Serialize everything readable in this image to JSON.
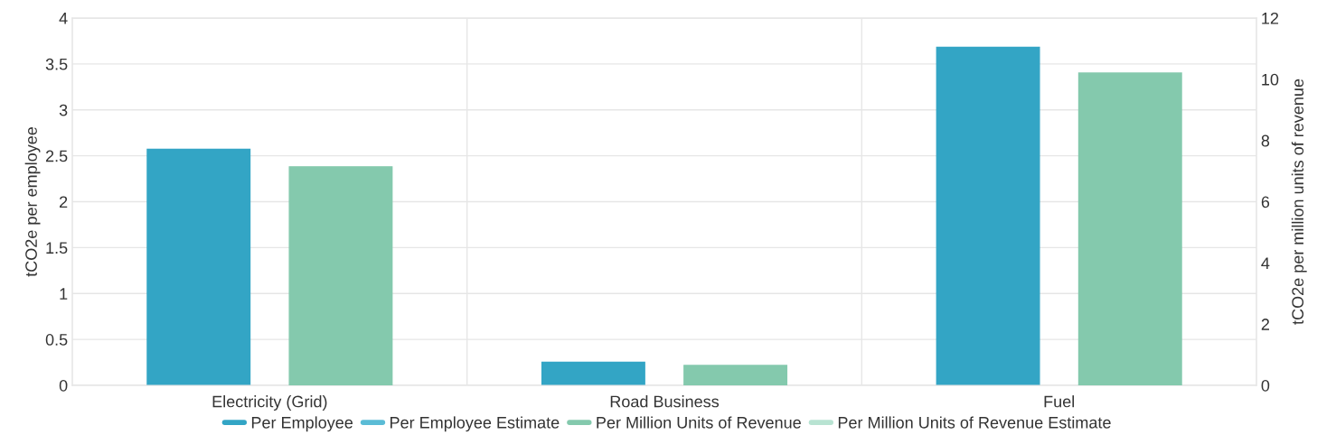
{
  "chart_data": {
    "type": "bar",
    "categories": [
      "Electricity (Grid)",
      "Road Business",
      "Fuel"
    ],
    "series": [
      {
        "name": "Per Employee",
        "color": "#33a5c5",
        "values": [
          2.57,
          0.25,
          3.68
        ]
      },
      {
        "name": "Per Employee Estimate",
        "color": "#5bbcd6",
        "values": [
          null,
          null,
          null
        ]
      },
      {
        "name": "Per Million Units of Revenue",
        "color": "#84c9ad",
        "values": [
          7.14,
          0.65,
          10.2
        ],
        "axis": "y2"
      },
      {
        "name": "Per Million Units of Revenue Estimate",
        "color": "#b8e3d2",
        "values": [
          null,
          null,
          null
        ],
        "axis": "y2"
      }
    ],
    "ylabel": "tCO2e per employee",
    "y2label": "tCO2e per million units of revenue",
    "ylim": [
      0,
      4
    ],
    "yticks": [
      0,
      0.5,
      1,
      1.5,
      2,
      2.5,
      3,
      3.5,
      4
    ],
    "y2lim": [
      0,
      12
    ],
    "y2ticks": [
      0,
      2,
      4,
      6,
      8,
      10,
      12
    ],
    "grid": true,
    "legend": "bottom"
  }
}
